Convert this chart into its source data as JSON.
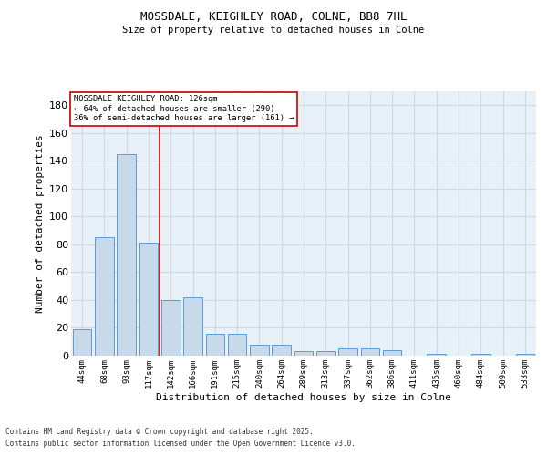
{
  "title1": "MOSSDALE, KEIGHLEY ROAD, COLNE, BB8 7HL",
  "title2": "Size of property relative to detached houses in Colne",
  "xlabel": "Distribution of detached houses by size in Colne",
  "ylabel": "Number of detached properties",
  "categories": [
    "44sqm",
    "68sqm",
    "93sqm",
    "117sqm",
    "142sqm",
    "166sqm",
    "191sqm",
    "215sqm",
    "240sqm",
    "264sqm",
    "289sqm",
    "313sqm",
    "337sqm",
    "362sqm",
    "386sqm",
    "411sqm",
    "435sqm",
    "460sqm",
    "484sqm",
    "509sqm",
    "533sqm"
  ],
  "values": [
    19,
    85,
    145,
    81,
    40,
    42,
    16,
    16,
    8,
    8,
    3,
    3,
    5,
    5,
    4,
    0,
    1,
    0,
    1,
    0,
    1
  ],
  "bar_color": "#c8daea",
  "bar_edge_color": "#5b9bd5",
  "grid_color": "#d0d8e8",
  "bg_color": "#e8f0f8",
  "vline_color": "#cc0000",
  "vline_x": 3.5,
  "annotation_title": "MOSSDALE KEIGHLEY ROAD: 126sqm",
  "annotation_line1": "← 64% of detached houses are smaller (290)",
  "annotation_line2": "36% of semi-detached houses are larger (161) →",
  "annotation_box_color": "#ffffff",
  "annotation_box_edge": "#cc0000",
  "ylim": [
    0,
    190
  ],
  "yticks": [
    0,
    20,
    40,
    60,
    80,
    100,
    120,
    140,
    160,
    180
  ],
  "footer1": "Contains HM Land Registry data © Crown copyright and database right 2025.",
  "footer2": "Contains public sector information licensed under the Open Government Licence v3.0."
}
